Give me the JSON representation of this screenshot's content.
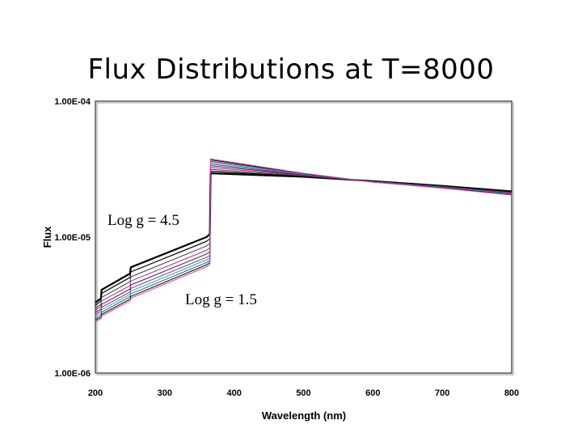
{
  "chart_data": {
    "type": "line",
    "title": "Flux Distributions at T=8000",
    "xlabel": "Wavelength (nm)",
    "ylabel": "Flux",
    "x_ticks": [
      "200",
      "300",
      "400",
      "500",
      "600",
      "700",
      "800"
    ],
    "y_ticks": [
      "1.00E-04",
      "1.00E-05",
      "1.00E-06"
    ],
    "xlim": [
      200,
      800
    ],
    "ylim": [
      1e-06,
      0.0001
    ],
    "yscale": "log",
    "grid": false,
    "annotations": [
      {
        "text": "Log g = 4.5",
        "x": 240,
        "y": 1.4e-05
      },
      {
        "text": "Log g = 1.5",
        "x": 343,
        "y": 3.3e-06
      }
    ],
    "series": [
      {
        "color": "#000000",
        "lineWidth": 2.2,
        "points": [
          [
            200,
            3.3e-06
          ],
          [
            208,
            3.55e-06
          ],
          [
            209,
            4.1e-06
          ],
          [
            250,
            5.4e-06
          ],
          [
            251,
            6e-06
          ],
          [
            360,
            1e-05
          ],
          [
            365,
            1.05e-05
          ],
          [
            366,
            2.95e-05
          ],
          [
            500,
            2.78e-05
          ],
          [
            600,
            2.58e-05
          ],
          [
            700,
            2.38e-05
          ],
          [
            800,
            2.17e-05
          ]
        ]
      },
      {
        "color": "#000000",
        "lineWidth": 1.2,
        "points": [
          [
            200,
            3.15e-06
          ],
          [
            208,
            3.4e-06
          ],
          [
            209,
            3.85e-06
          ],
          [
            250,
            5.05e-06
          ],
          [
            251,
            5.55e-06
          ],
          [
            360,
            9.3e-06
          ],
          [
            365,
            9.7e-06
          ],
          [
            366,
            3.05e-05
          ],
          [
            500,
            2.8e-05
          ],
          [
            600,
            2.57e-05
          ],
          [
            700,
            2.37e-05
          ],
          [
            800,
            2.15e-05
          ]
        ]
      },
      {
        "color": "#3a3a3a",
        "lineWidth": 1.0,
        "points": [
          [
            200,
            3e-06
          ],
          [
            208,
            3.2e-06
          ],
          [
            209,
            3.6e-06
          ],
          [
            250,
            4.7e-06
          ],
          [
            251,
            5.1e-06
          ],
          [
            360,
            8.6e-06
          ],
          [
            365,
            9e-06
          ],
          [
            366,
            3.15e-05
          ],
          [
            500,
            2.82e-05
          ],
          [
            600,
            2.56e-05
          ],
          [
            700,
            2.36e-05
          ],
          [
            800,
            2.13e-05
          ]
        ]
      },
      {
        "color": "#c0208a",
        "lineWidth": 1.0,
        "points": [
          [
            200,
            2.9e-06
          ],
          [
            208,
            3.1e-06
          ],
          [
            209,
            3.4e-06
          ],
          [
            250,
            4.4e-06
          ],
          [
            251,
            4.75e-06
          ],
          [
            360,
            8e-06
          ],
          [
            365,
            8.35e-06
          ],
          [
            366,
            3.25e-05
          ],
          [
            500,
            2.84e-05
          ],
          [
            600,
            2.56e-05
          ],
          [
            700,
            2.35e-05
          ],
          [
            800,
            2.12e-05
          ]
        ]
      },
      {
        "color": "#2a2a2a",
        "lineWidth": 1.0,
        "points": [
          [
            200,
            2.8e-06
          ],
          [
            208,
            2.95e-06
          ],
          [
            209,
            3.2e-06
          ],
          [
            250,
            4.15e-06
          ],
          [
            251,
            4.45e-06
          ],
          [
            360,
            7.5e-06
          ],
          [
            365,
            7.8e-06
          ],
          [
            366,
            3.35e-05
          ],
          [
            500,
            2.86e-05
          ],
          [
            600,
            2.55e-05
          ],
          [
            700,
            2.34e-05
          ],
          [
            800,
            2.1e-05
          ]
        ]
      },
      {
        "color": "#8a1fa0",
        "lineWidth": 1.0,
        "points": [
          [
            200,
            2.7e-06
          ],
          [
            208,
            2.85e-06
          ],
          [
            209,
            3.05e-06
          ],
          [
            250,
            3.95e-06
          ],
          [
            251,
            4.2e-06
          ],
          [
            360,
            7.1e-06
          ],
          [
            365,
            7.35e-06
          ],
          [
            366,
            3.45e-05
          ],
          [
            500,
            2.88e-05
          ],
          [
            600,
            2.55e-05
          ],
          [
            700,
            2.33e-05
          ],
          [
            800,
            2.09e-05
          ]
        ]
      },
      {
        "color": "#20b8c8",
        "lineWidth": 1.1,
        "points": [
          [
            200,
            2.62e-06
          ],
          [
            208,
            2.75e-06
          ],
          [
            209,
            2.92e-06
          ],
          [
            250,
            3.8e-06
          ],
          [
            251,
            4e-06
          ],
          [
            360,
            6.8e-06
          ],
          [
            365,
            7.05e-06
          ],
          [
            366,
            3.55e-05
          ],
          [
            500,
            2.9e-05
          ],
          [
            600,
            2.55e-05
          ],
          [
            700,
            2.32e-05
          ],
          [
            800,
            2.08e-05
          ]
        ]
      },
      {
        "color": "#555555",
        "lineWidth": 1.0,
        "points": [
          [
            200,
            2.52e-06
          ],
          [
            208,
            2.65e-06
          ],
          [
            209,
            2.8e-06
          ],
          [
            250,
            3.65e-06
          ],
          [
            251,
            3.82e-06
          ],
          [
            360,
            6.5e-06
          ],
          [
            365,
            6.75e-06
          ],
          [
            366,
            3.62e-05
          ],
          [
            500,
            2.92e-05
          ],
          [
            600,
            2.54e-05
          ],
          [
            700,
            2.31e-05
          ],
          [
            800,
            2.06e-05
          ]
        ]
      },
      {
        "color": "#000000",
        "lineWidth": 1.0,
        "points": [
          [
            200,
            2.45e-06
          ],
          [
            208,
            2.57e-06
          ],
          [
            209,
            2.7e-06
          ],
          [
            250,
            3.5e-06
          ],
          [
            251,
            3.66e-06
          ],
          [
            360,
            6.25e-06
          ],
          [
            365,
            6.5e-06
          ],
          [
            366,
            3.7e-05
          ],
          [
            500,
            2.94e-05
          ],
          [
            600,
            2.54e-05
          ],
          [
            700,
            2.3e-05
          ],
          [
            800,
            2.05e-05
          ]
        ]
      },
      {
        "color": "#d040b0",
        "lineWidth": 1.0,
        "points": [
          [
            200,
            2.38e-06
          ],
          [
            208,
            2.5e-06
          ],
          [
            209,
            2.62e-06
          ],
          [
            250,
            3.4e-06
          ],
          [
            251,
            3.55e-06
          ],
          [
            360,
            6.05e-06
          ],
          [
            365,
            6.3e-06
          ],
          [
            366,
            3.76e-05
          ],
          [
            500,
            2.95e-05
          ],
          [
            600,
            2.54e-05
          ],
          [
            700,
            2.29e-05
          ],
          [
            800,
            2.04e-05
          ]
        ]
      }
    ]
  }
}
